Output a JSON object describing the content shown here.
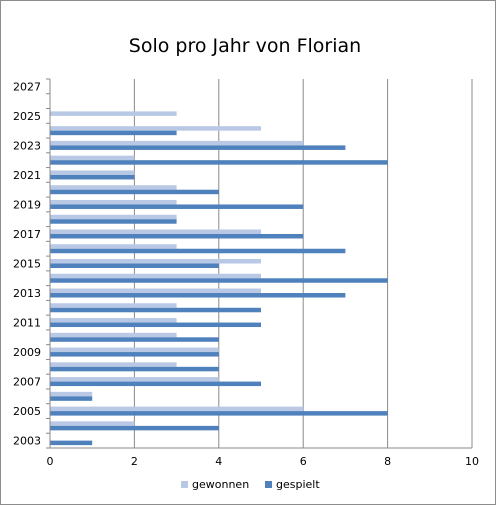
{
  "chart_data": {
    "type": "bar",
    "orientation": "horizontal",
    "title": "Solo pro Jahr von Florian",
    "xlabel": "",
    "ylabel": "",
    "xlim": [
      0,
      10
    ],
    "x_ticks": [
      "0",
      "2",
      "4",
      "6",
      "8",
      "10"
    ],
    "grid": "vertical major gridlines",
    "legend_position": "bottom",
    "y_tick_labels": [
      "2003",
      "2005",
      "2007",
      "2009",
      "2011",
      "2013",
      "2015",
      "2017",
      "2019",
      "2021",
      "2023",
      "2025",
      "2027"
    ],
    "categories": [
      2003,
      2004,
      2005,
      2006,
      2007,
      2008,
      2009,
      2010,
      2011,
      2012,
      2013,
      2014,
      2015,
      2016,
      2017,
      2018,
      2019,
      2020,
      2021,
      2022,
      2023,
      2024,
      2025,
      2026,
      2027
    ],
    "series": [
      {
        "name": "gewonnen",
        "color": "#b9c9e5",
        "values": [
          0,
          2,
          6,
          1,
          4,
          3,
          4,
          3,
          3,
          3,
          5,
          5,
          5,
          3,
          5,
          3,
          3,
          3,
          2,
          2,
          6,
          5,
          3,
          0,
          0
        ]
      },
      {
        "name": "gespielt",
        "color": "#4f81bd",
        "values": [
          1,
          4,
          8,
          1,
          5,
          4,
          4,
          4,
          5,
          5,
          7,
          8,
          4,
          7,
          6,
          3,
          6,
          4,
          2,
          8,
          7,
          3,
          0,
          0,
          0
        ]
      }
    ]
  }
}
